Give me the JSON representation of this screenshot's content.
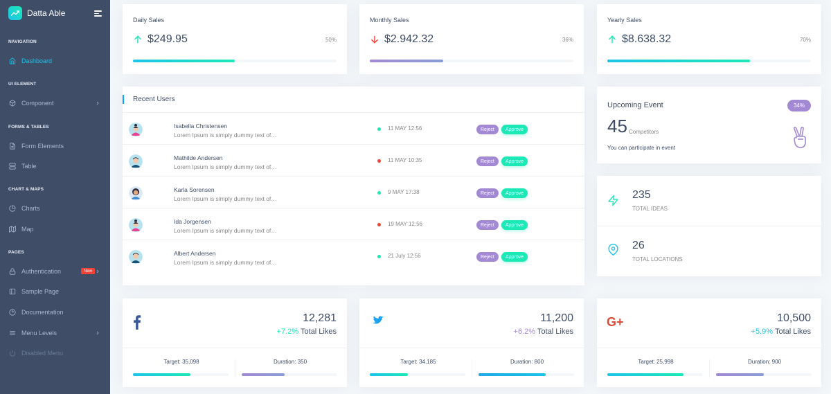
{
  "brand": {
    "name": "Datta Able",
    "logo_icon": "trending-up-icon"
  },
  "nav": {
    "captions": [
      "Navigation",
      "UI Element",
      "Forms & Tables",
      "Chart & Maps",
      "Pages"
    ],
    "items": [
      {
        "label": "Dashboard",
        "icon": "home-icon",
        "active": true
      },
      {
        "label": "Component",
        "icon": "box-icon",
        "has_submenu": true
      },
      {
        "label": "Form Elements",
        "icon": "file-text-icon"
      },
      {
        "label": "Table",
        "icon": "server-icon"
      },
      {
        "label": "Charts",
        "icon": "pie-chart-icon"
      },
      {
        "label": "Map",
        "icon": "map-icon"
      },
      {
        "label": "Authentication",
        "icon": "lock-icon",
        "badge": "New",
        "has_submenu": true
      },
      {
        "label": "Sample Page",
        "icon": "sidebar-icon"
      },
      {
        "label": "Documentation",
        "icon": "help-circle-icon"
      },
      {
        "label": "Menu Levels",
        "icon": "menu-icon",
        "has_submenu": true
      },
      {
        "label": "Disabled Menu",
        "icon": "power-icon",
        "disabled": true
      }
    ]
  },
  "sales": [
    {
      "title": "Daily Sales",
      "value": "$249.95",
      "trend": "up",
      "percent_label": "50%",
      "percent": 50,
      "bar": "green"
    },
    {
      "title": "Monthly Sales",
      "value": "$2.942.32",
      "trend": "down",
      "percent_label": "36%",
      "percent": 36,
      "bar": "purple"
    },
    {
      "title": "Yearly Sales",
      "value": "$8.638.32",
      "trend": "up",
      "percent_label": "70%",
      "percent": 70,
      "bar": "green"
    }
  ],
  "recent_users": {
    "title": "Recent Users",
    "reject_label": "Reject",
    "approve_label": "Approve",
    "rows": [
      {
        "name": "Isabella Christensen",
        "desc": "Lorem Ipsum is simply dummy text of…",
        "date": "11 MAY 12:56",
        "status": "green",
        "avatar": "female"
      },
      {
        "name": "Mathilde Andersen",
        "desc": "Lorem Ipsum is simply dummy text of…",
        "date": "11 MAY 10:35",
        "status": "red",
        "avatar": "male"
      },
      {
        "name": "Karla Sorensen",
        "desc": "Lorem Ipsum is simply dummy text of…",
        "date": "9 MAY 17:38",
        "status": "green",
        "avatar": "female2"
      },
      {
        "name": "Ida Jorgensen",
        "desc": "Lorem Ipsum is simply dummy text of…",
        "date": "19 MAY 12:56",
        "status": "red",
        "avatar": "female"
      },
      {
        "name": "Albert Andersen",
        "desc": "Lorem Ipsum is simply dummy text of…",
        "date": "21 July 12:56",
        "status": "green",
        "avatar": "male"
      }
    ]
  },
  "upcoming_event": {
    "title": "Upcoming Event",
    "badge": "34%",
    "count": "45",
    "count_label": "Competitors",
    "note": "You can participate in event",
    "icon": "victory-hand-icon"
  },
  "stats": [
    {
      "value": "235",
      "label": "TOTAL IDEAS",
      "icon": "zap-icon"
    },
    {
      "value": "26",
      "label": "TOTAL LOCATIONS",
      "icon": "map-pin-icon"
    }
  ],
  "social": [
    {
      "network": "facebook",
      "icon": "facebook-icon",
      "color": "#3b5998",
      "count": "12,281",
      "pct": "+7.2%",
      "pct_color": "#1de9b6",
      "likes_label": "Total Likes",
      "target_label": "Target:",
      "target": "35,098",
      "target_progress": 60,
      "duration_label": "Duration:",
      "duration": "350",
      "duration_progress": 45
    },
    {
      "network": "twitter",
      "icon": "twitter-icon",
      "color": "#42c0fb",
      "count": "11,200",
      "pct": "+6.2%",
      "pct_color": "#a389d4",
      "likes_label": "Total Likes",
      "target_label": "Target:",
      "target": "34,185",
      "target_progress": 40,
      "duration_label": "Duration:",
      "duration": "800",
      "duration_progress": 70
    },
    {
      "network": "google-plus",
      "icon": "google-plus-icon",
      "color": "#dd4b39",
      "count": "10,500",
      "pct": "+5.9%",
      "pct_color": "#1dc4e9",
      "likes_label": "Total Likes",
      "target_label": "Target:",
      "target": "25,998",
      "target_progress": 80,
      "duration_label": "Duration:",
      "duration": "900",
      "duration_progress": 50
    }
  ]
}
